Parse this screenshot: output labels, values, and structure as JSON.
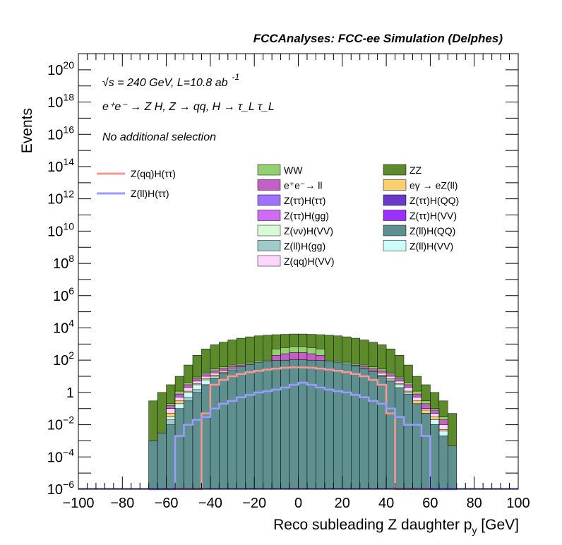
{
  "chart_data": {
    "type": "stacked-histogram",
    "title": "FCCAnalyses: FCC-ee Simulation (Delphes)",
    "xlabel": "Reco subleading Z daughter p",
    "xlabel_sub": "y",
    "xlabel_unit": " [GeV]",
    "ylabel": "Events",
    "y_log_scale": true,
    "xlim": [
      -100,
      100
    ],
    "ylim": [
      1e-06,
      1e+21
    ],
    "xticks": [
      -100,
      -80,
      -60,
      -40,
      -20,
      0,
      20,
      40,
      60,
      80,
      100
    ],
    "yticks": [
      {
        "value": 1e-06,
        "base": "10",
        "exp": "-6"
      },
      {
        "value": 0.0001,
        "base": "10",
        "exp": "-4"
      },
      {
        "value": 0.01,
        "base": "10",
        "exp": "-2"
      },
      {
        "value": 1,
        "base": "1",
        "exp": ""
      },
      {
        "value": 100.0,
        "base": "10",
        "exp": "2"
      },
      {
        "value": 10000.0,
        "base": "10",
        "exp": "4"
      },
      {
        "value": 1000000.0,
        "base": "10",
        "exp": "6"
      },
      {
        "value": 100000000.0,
        "base": "10",
        "exp": "8"
      },
      {
        "value": 10000000000.0,
        "base": "10",
        "exp": "10"
      },
      {
        "value": 1000000000000.0,
        "base": "10",
        "exp": "12"
      },
      {
        "value": 100000000000000.0,
        "base": "10",
        "exp": "14"
      },
      {
        "value": 1e+16,
        "base": "10",
        "exp": "16"
      },
      {
        "value": 1e+18,
        "base": "10",
        "exp": "18"
      },
      {
        "value": 1e+20,
        "base": "10",
        "exp": "20"
      }
    ],
    "annotations": {
      "energy_line": "√s = 240 GeV, L=10.8 ab",
      "energy_sup": "-1",
      "process": "e⁺e⁻ → Z H, Z → qq, H → τ_L τ_L",
      "selection": "No additional selection"
    },
    "bin_edges": [
      -68,
      -64,
      -60,
      -56,
      -52,
      -48,
      -44,
      -40,
      -36,
      -32,
      -28,
      -24,
      -20,
      -16,
      -12,
      -8,
      -4,
      0,
      4,
      8,
      12,
      16,
      20,
      24,
      28,
      32,
      36,
      40,
      44,
      48,
      52,
      56,
      60,
      64,
      68,
      72
    ],
    "stack_levels": {
      "Z(ll)H(QQ)": [
        0.001,
        0.003,
        0.01,
        0.1,
        0.3,
        1,
        3,
        8,
        15,
        25,
        40,
        55,
        70,
        85,
        95,
        100,
        105,
        105,
        100,
        95,
        85,
        75,
        60,
        45,
        30,
        20,
        10,
        5,
        2,
        0.8,
        0.2,
        0.05,
        0.01,
        0.002,
        0.0005
      ],
      "Z(ττ)H(gg)": [
        0,
        0,
        0,
        0.001,
        0.003,
        0.005,
        0.008,
        0.01,
        0.012,
        0.015,
        0.015,
        0.018,
        0.02,
        0.02,
        0.02,
        0.022,
        0.022,
        0.022,
        0.022,
        0.022,
        0.02,
        0.02,
        0.018,
        0.016,
        0.014,
        0.012,
        0.01,
        0.008,
        0.005,
        0.003,
        0.001,
        0.0005,
        0.0002,
        0,
        0
      ],
      "Z(ττ)H(VV)": [
        0,
        0,
        0,
        0.002,
        0.005,
        0.008,
        0.015,
        0.02,
        0.025,
        0.03,
        0.03,
        0.035,
        0.035,
        0.04,
        0.04,
        0.04,
        0.045,
        0.045,
        0.04,
        0.04,
        0.04,
        0.035,
        0.035,
        0.03,
        0.03,
        0.025,
        0.02,
        0.015,
        0.01,
        0.005,
        0.002,
        0.001,
        0,
        0,
        0
      ],
      "Z(ττ)H(ττ)": [
        0,
        0,
        0,
        0.004,
        0.01,
        0.02,
        0.05,
        0.08,
        0.1,
        0.15,
        0.2,
        0.25,
        0.3,
        0.3,
        0.35,
        0.4,
        0.4,
        0.4,
        0.4,
        0.35,
        0.3,
        0.3,
        0.25,
        0.2,
        0.15,
        0.1,
        0.08,
        0.05,
        0.03,
        0.01,
        0.005,
        0.002,
        0,
        0,
        0
      ],
      "Z(ττ)H(QQ)": [
        0,
        0,
        0,
        0.02,
        0.1,
        0.3,
        0.6,
        0.9,
        1.2,
        1.5,
        1.8,
        2,
        2.2,
        2.4,
        2.5,
        2.6,
        2.7,
        2.7,
        2.6,
        2.5,
        2.4,
        2.2,
        2,
        1.8,
        1.5,
        1.2,
        0.9,
        0.6,
        0.3,
        0.1,
        0.03,
        0.01,
        0.003,
        0.001,
        0
      ],
      "Z(νν)H(VV)": [
        0,
        0,
        0,
        0.05,
        0.2,
        0.6,
        1.2,
        2,
        3,
        4,
        5,
        6,
        7,
        8,
        8.5,
        9,
        9,
        9,
        9,
        8.5,
        8,
        7,
        6,
        5,
        4,
        3,
        2,
        1.2,
        0.6,
        0.2,
        0.05,
        0.02,
        0.005,
        0.001,
        0
      ],
      "Z(ll)H(gg)": [
        0,
        0,
        0.02,
        0.1,
        0.5,
        1.5,
        3,
        5,
        8,
        11,
        14,
        17,
        19,
        21,
        22,
        23,
        24,
        24,
        23,
        22,
        21,
        19,
        17,
        14,
        11,
        8,
        5,
        3,
        1.5,
        0.5,
        0.1,
        0.04,
        0.01,
        0.002,
        0
      ],
      "Z(ll)H(VV)": [
        0,
        0,
        0.03,
        0.2,
        1,
        3,
        6,
        10,
        15,
        20,
        25,
        30,
        35,
        38,
        40,
        42,
        44,
        44,
        42,
        40,
        38,
        35,
        30,
        25,
        20,
        15,
        10,
        6,
        3,
        1,
        0.2,
        0.05,
        0.02,
        0.004,
        0
      ],
      "eγ → eZ(ll)": [
        0,
        0,
        0.05,
        0.3,
        1.2,
        3.5,
        7,
        12,
        18,
        24,
        30,
        36,
        42,
        46,
        50,
        53,
        56,
        56,
        53,
        50,
        46,
        42,
        36,
        30,
        24,
        18,
        12,
        7,
        3.5,
        1.2,
        0.3,
        0.08,
        0.03,
        0.005,
        0
      ],
      "Z(qq)H(VV)": [
        0,
        0,
        0.1,
        0.5,
        2,
        5,
        10,
        16,
        22,
        30,
        38,
        45,
        52,
        58,
        62,
        66,
        70,
        70,
        66,
        62,
        58,
        52,
        45,
        38,
        30,
        22,
        16,
        10,
        5,
        2,
        0.5,
        0.1,
        0.05,
        0.01,
        0
      ],
      "e⁺e⁻→ ll": [
        0,
        0,
        0.15,
        0.8,
        3,
        7,
        14,
        22,
        30,
        40,
        50,
        60,
        70,
        80,
        200,
        250,
        300,
        300,
        250,
        200,
        80,
        70,
        60,
        50,
        40,
        30,
        22,
        14,
        7,
        3,
        0.8,
        0.2,
        0.08,
        0.02,
        0
      ],
      "WW": [
        0,
        0,
        0.2,
        1.2,
        4,
        9,
        18,
        28,
        38,
        50,
        62,
        75,
        90,
        100,
        500,
        600,
        700,
        700,
        600,
        500,
        100,
        90,
        75,
        62,
        50,
        38,
        28,
        18,
        9,
        4,
        1.2,
        0.3,
        0.1,
        0.03,
        0
      ],
      "ZZ": [
        0.3,
        1,
        3,
        10,
        50,
        200,
        500,
        900,
        1300,
        1800,
        2300,
        2800,
        3200,
        3500,
        3800,
        4000,
        4200,
        4200,
        4000,
        3800,
        3500,
        3200,
        2800,
        2300,
        1800,
        1300,
        900,
        500,
        200,
        50,
        10,
        3,
        1,
        0.3,
        0.05
      ]
    },
    "stack_order": [
      "Z(ll)H(QQ)",
      "Z(ττ)H(gg)",
      "Z(ττ)H(VV)",
      "Z(ττ)H(ττ)",
      "Z(ττ)H(QQ)",
      "Z(νν)H(VV)",
      "Z(ll)H(gg)",
      "Z(ll)H(VV)",
      "eγ → eZ(ll)",
      "Z(qq)H(VV)",
      "e⁺e⁻→ ll",
      "WW",
      "ZZ"
    ],
    "signals": [
      {
        "name": "Z(qq)H(ττ)",
        "color": "#ff9494",
        "values": [
          0,
          0,
          0,
          0,
          0,
          0,
          0.05,
          3,
          6,
          10,
          14,
          18,
          22,
          26,
          30,
          34,
          36,
          36,
          34,
          30,
          26,
          22,
          18,
          14,
          10,
          6,
          3,
          0.05,
          0,
          0,
          0,
          0,
          0,
          0,
          0
        ]
      },
      {
        "name": "Z(ll)H(ττ)",
        "color": "#9b9bff",
        "values": [
          0,
          0,
          0,
          0.002,
          0.01,
          0.02,
          0.03,
          0.1,
          0.2,
          0.3,
          0.5,
          0.7,
          1,
          1.2,
          1.5,
          2,
          3,
          4,
          3,
          2,
          1.5,
          1.2,
          1,
          0.7,
          0.5,
          0.3,
          0.2,
          0.1,
          0.03,
          0.01,
          0.01,
          0.002,
          0,
          0,
          0
        ]
      }
    ],
    "legend": {
      "signals": [
        {
          "name": "Z(qq)H(ττ)",
          "color": "#ff9494"
        },
        {
          "name": "Z(ll)H(ττ)",
          "color": "#9b9bff"
        }
      ],
      "backgrounds": [
        {
          "name": "WW",
          "color": "#93d070"
        },
        {
          "name": "ZZ",
          "color": "#5d8b2c"
        },
        {
          "name": "e⁺e⁻→ ll",
          "color": "#c65fc5"
        },
        {
          "name": "eγ → eZ(ll)",
          "color": "#fbcf6e"
        },
        {
          "name": "Z(ττ)H(ττ)",
          "color": "#a070ff"
        },
        {
          "name": "Z(ττ)H(QQ)",
          "color": "#6a39c7"
        },
        {
          "name": "Z(ττ)H(gg)",
          "color": "#cf6bf5"
        },
        {
          "name": "Z(ττ)H(VV)",
          "color": "#9b30ff"
        },
        {
          "name": "Z(νν)H(VV)",
          "color": "#d7fcd5"
        },
        {
          "name": "Z(ll)H(QQ)",
          "color": "#5f9090"
        },
        {
          "name": "Z(ll)H(gg)",
          "color": "#9fcbcb"
        },
        {
          "name": "Z(ll)H(VV)",
          "color": "#ccfcfc"
        },
        {
          "name": "Z(qq)H(VV)",
          "color": "#fcd7fc"
        }
      ]
    }
  }
}
